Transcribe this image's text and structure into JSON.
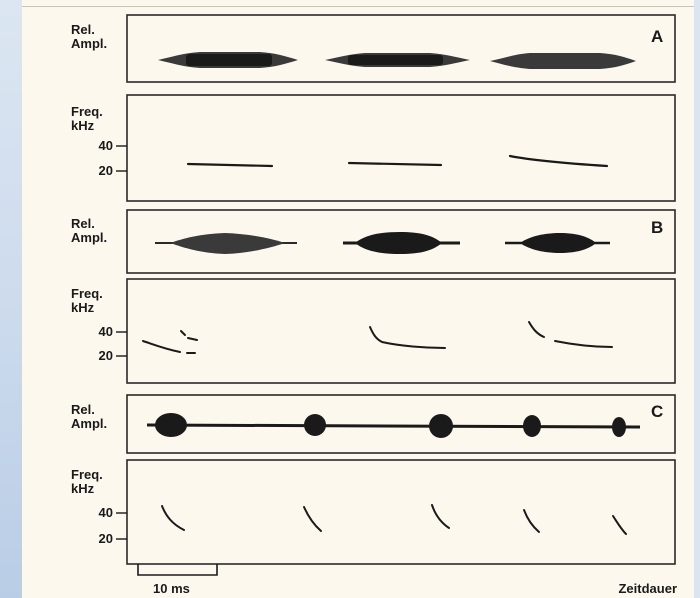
{
  "panels": [
    {
      "letter": "A",
      "amp_label_1": "Rel.",
      "amp_label_2": "Ampl.",
      "freq_label_1": "Freq.",
      "freq_label_2": "kHz",
      "tick_40": "40",
      "tick_20": "20"
    },
    {
      "letter": "B",
      "amp_label_1": "Rel.",
      "amp_label_2": "Ampl.",
      "freq_label_1": "Freq.",
      "freq_label_2": "kHz",
      "tick_40": "40",
      "tick_20": "20"
    },
    {
      "letter": "C",
      "amp_label_1": "Rel.",
      "amp_label_2": "Ampl.",
      "freq_label_1": "Freq.",
      "freq_label_2": "kHz",
      "tick_40": "40",
      "tick_20": "20"
    }
  ],
  "scale_bar_label": "10 ms",
  "time_axis_label": "Zeitdauer",
  "colors": {
    "ink": "#1a1a1a",
    "paper": "#fcf8ee",
    "frame": "#2a2a2a"
  }
}
